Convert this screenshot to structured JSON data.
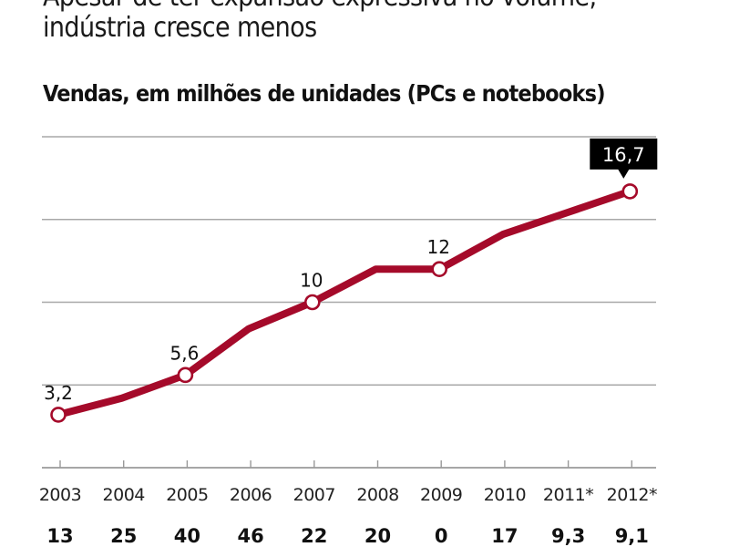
{
  "header": {
    "title_line1": "Apesar de ter expansão expressiva no volume,",
    "title_line2": "indústria cresce menos",
    "subtitle": "Vendas, em milhões de unidades (PCs e notebooks)"
  },
  "colors": {
    "line": "#a50a2a",
    "grid": "#a8a8a8",
    "callout_bg": "#000000",
    "marker_fill": "#ffffff"
  },
  "chart_data": {
    "type": "line",
    "title": "Vendas, em milhões de unidades (PCs e notebooks)",
    "xlabel": "",
    "ylabel": "",
    "categories": [
      "2003",
      "2004",
      "2005",
      "2006",
      "2007",
      "2008",
      "2009",
      "2010",
      "2011*",
      "2012*"
    ],
    "series": [
      {
        "name": "Vendas (milhões de unidades)",
        "values": [
          3.2,
          4.2,
          5.6,
          8.4,
          10,
          12,
          12,
          14.1,
          15.4,
          16.7
        ]
      }
    ],
    "labeled_points": [
      {
        "index": 0,
        "label": "3,2"
      },
      {
        "index": 2,
        "label": "5,6"
      },
      {
        "index": 4,
        "label": "10"
      },
      {
        "index": 6,
        "label": "12"
      },
      {
        "index": 9,
        "label": "16,7",
        "highlight": true
      }
    ],
    "growth_row": [
      "13",
      "25",
      "40",
      "46",
      "22",
      "20",
      "0",
      "17",
      "9,3",
      "9,1"
    ],
    "ylim": [
      0,
      20
    ],
    "gridlines": [
      5,
      10,
      15,
      20
    ],
    "grid": true,
    "legend": "none"
  }
}
